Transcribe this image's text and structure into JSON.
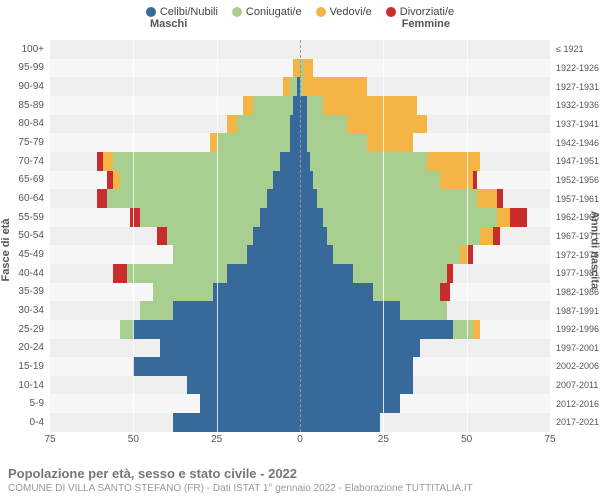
{
  "chart": {
    "type": "population-pyramid",
    "xmax": 75,
    "xtick_step": 25,
    "xticks": [
      "75",
      "50",
      "25",
      "0",
      "25",
      "50",
      "75"
    ],
    "background_color": "#f7f7f7",
    "alt_row_color": "#efefef",
    "grid_color": "rgba(255,255,255,0.8)",
    "centerline_style": "dashed"
  },
  "legend": [
    {
      "label": "Celibi/Nubili",
      "color": "#376a9b"
    },
    {
      "label": "Coniugati/e",
      "color": "#a8cf8f"
    },
    {
      "label": "Vedovi/e",
      "color": "#f5b546"
    },
    {
      "label": "Divorziati/e",
      "color": "#c82c2c"
    }
  ],
  "groups": {
    "left": "Maschi",
    "right": "Femmine"
  },
  "axis_titles": {
    "left": "Fasce di età",
    "right": "Anni di nascita"
  },
  "rows": [
    {
      "age": "100+",
      "birth": "≤ 1921",
      "m": [
        0,
        0,
        0,
        0
      ],
      "f": [
        0,
        0,
        0,
        0
      ]
    },
    {
      "age": "95-99",
      "birth": "1922-1926",
      "m": [
        0,
        0,
        2,
        0
      ],
      "f": [
        0,
        1,
        3,
        0
      ]
    },
    {
      "age": "90-94",
      "birth": "1927-1931",
      "m": [
        1,
        2,
        2,
        0
      ],
      "f": [
        0,
        1,
        19,
        0
      ]
    },
    {
      "age": "85-89",
      "birth": "1932-1936",
      "m": [
        2,
        12,
        3,
        0
      ],
      "f": [
        2,
        5,
        28,
        0
      ]
    },
    {
      "age": "80-84",
      "birth": "1937-1941",
      "m": [
        3,
        16,
        3,
        0
      ],
      "f": [
        2,
        12,
        24,
        0
      ]
    },
    {
      "age": "75-79",
      "birth": "1942-1946",
      "m": [
        3,
        22,
        2,
        0
      ],
      "f": [
        2,
        18,
        14,
        0
      ]
    },
    {
      "age": "70-74",
      "birth": "1947-1951",
      "m": [
        6,
        50,
        3,
        2
      ],
      "f": [
        3,
        35,
        16,
        0
      ]
    },
    {
      "age": "65-69",
      "birth": "1952-1956",
      "m": [
        8,
        46,
        2,
        2
      ],
      "f": [
        4,
        38,
        10,
        1
      ]
    },
    {
      "age": "60-64",
      "birth": "1957-1961",
      "m": [
        10,
        48,
        0,
        3
      ],
      "f": [
        5,
        48,
        6,
        2
      ]
    },
    {
      "age": "55-59",
      "birth": "1962-1966",
      "m": [
        12,
        36,
        0,
        3
      ],
      "f": [
        7,
        52,
        4,
        5
      ]
    },
    {
      "age": "50-54",
      "birth": "1967-1971",
      "m": [
        14,
        26,
        0,
        3
      ],
      "f": [
        8,
        46,
        4,
        2
      ]
    },
    {
      "age": "45-49",
      "birth": "1972-1976",
      "m": [
        16,
        22,
        0,
        0
      ],
      "f": [
        10,
        38,
        2,
        2
      ]
    },
    {
      "age": "40-44",
      "birth": "1977-1981",
      "m": [
        22,
        30,
        0,
        4
      ],
      "f": [
        16,
        28,
        0,
        2
      ]
    },
    {
      "age": "35-39",
      "birth": "1982-1986",
      "m": [
        26,
        18,
        0,
        0
      ],
      "f": [
        22,
        20,
        0,
        3
      ]
    },
    {
      "age": "30-34",
      "birth": "1987-1991",
      "m": [
        38,
        10,
        0,
        0
      ],
      "f": [
        30,
        14,
        0,
        0
      ]
    },
    {
      "age": "25-29",
      "birth": "1992-1996",
      "m": [
        50,
        4,
        0,
        0
      ],
      "f": [
        46,
        6,
        2,
        0
      ]
    },
    {
      "age": "20-24",
      "birth": "1997-2001",
      "m": [
        42,
        0,
        0,
        0
      ],
      "f": [
        36,
        0,
        0,
        0
      ]
    },
    {
      "age": "15-19",
      "birth": "2002-2006",
      "m": [
        50,
        0,
        0,
        0
      ],
      "f": [
        34,
        0,
        0,
        0
      ]
    },
    {
      "age": "10-14",
      "birth": "2007-2011",
      "m": [
        34,
        0,
        0,
        0
      ],
      "f": [
        34,
        0,
        0,
        0
      ]
    },
    {
      "age": "5-9",
      "birth": "2012-2016",
      "m": [
        30,
        0,
        0,
        0
      ],
      "f": [
        30,
        0,
        0,
        0
      ]
    },
    {
      "age": "0-4",
      "birth": "2017-2021",
      "m": [
        38,
        0,
        0,
        0
      ],
      "f": [
        24,
        0,
        0,
        0
      ]
    }
  ],
  "footer": {
    "title": "Popolazione per età, sesso e stato civile - 2022",
    "sub": "COMUNE DI VILLA SANTO STEFANO (FR) - Dati ISTAT 1° gennaio 2022 - Elaborazione TUTTITALIA.IT"
  }
}
